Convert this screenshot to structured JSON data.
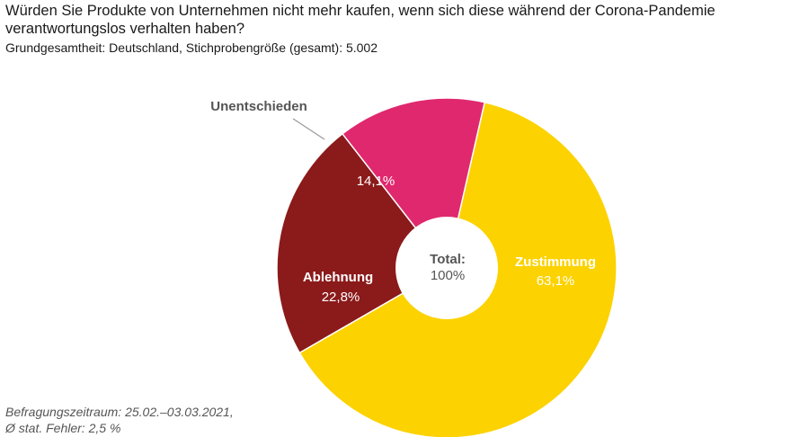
{
  "header": {
    "title": "Würden Sie Produkte von Unternehmen nicht mehr kaufen, wenn sich diese während der Corona-Pandemie verantwortungslos verhalten haben?",
    "subtitle": "Grundgesamtheit: Deutschland, Stichprobengröße (gesamt): 5.002"
  },
  "footer": {
    "line1": "Befragungszeitraum: 25.02.–03.03.2021,",
    "line2": "Ø stat. Fehler: 2,5 %"
  },
  "chart_data": {
    "type": "pie",
    "center_label": "Total:",
    "center_value": "100%",
    "slices": [
      {
        "label": "Zustimmung",
        "value": 63.1,
        "display": "63,1%",
        "color": "#fcd200"
      },
      {
        "label": "Ablehnung",
        "value": 22.8,
        "display": "22,8%",
        "color": "#8b1a1a"
      },
      {
        "label": "Unentschieden",
        "value": 14.1,
        "display": "14,1%",
        "color": "#e0286e"
      }
    ]
  }
}
